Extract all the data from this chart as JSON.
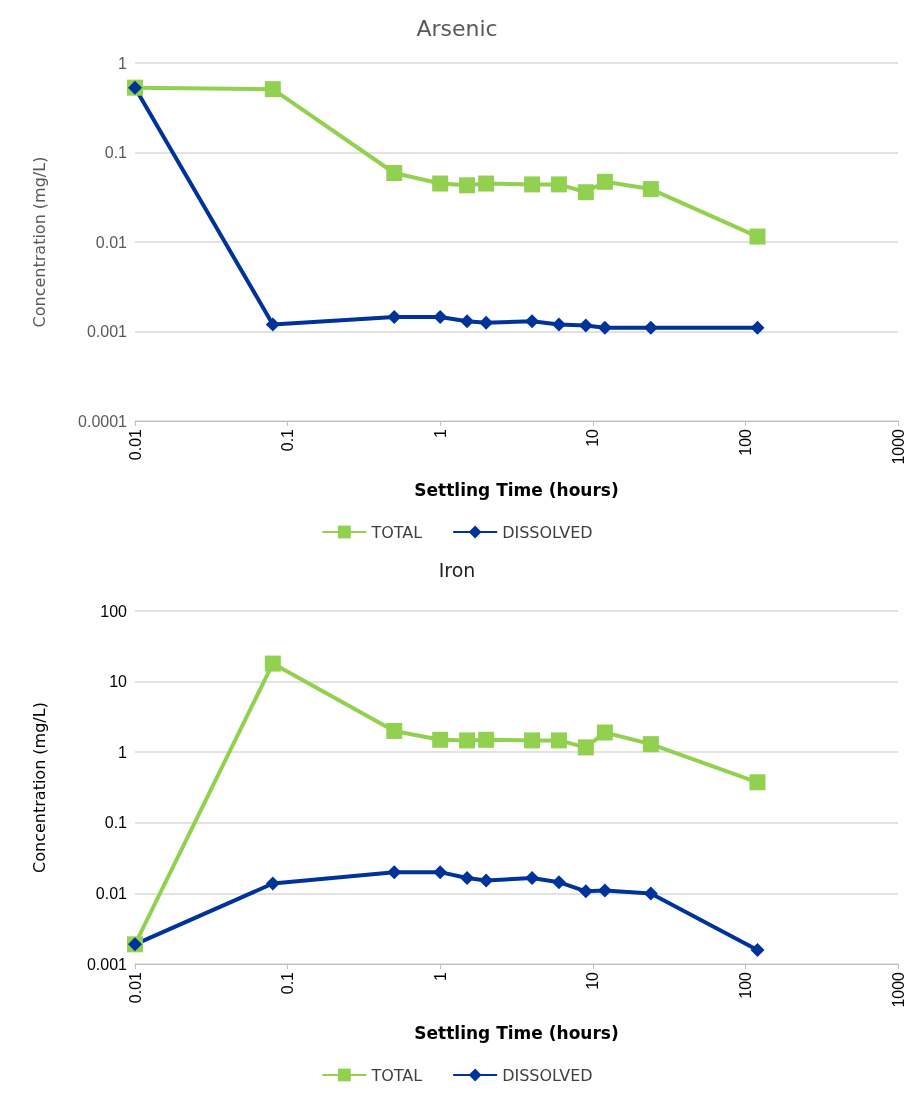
{
  "chart_data": [
    {
      "type": "line",
      "title": "Arsenic",
      "xlabel": "Settling Time (hours)",
      "ylabel": "Concentration (mg/L)",
      "log": "xy",
      "xlim": [
        0.01,
        1000
      ],
      "xticks": [
        0.01,
        0.1,
        1,
        10,
        100,
        1000
      ],
      "ylim": [
        0.0001,
        1
      ],
      "yticks": [
        0.0001,
        0.001,
        0.01,
        0.1,
        1
      ],
      "grid": "y",
      "legend": "bottom",
      "x": [
        0.01,
        0.08,
        0.5,
        1,
        1.5,
        2,
        4,
        6,
        9,
        12,
        24,
        120
      ],
      "series": [
        {
          "name": "TOTAL",
          "color": "#92d050",
          "marker": "square",
          "values": [
            0.53,
            0.51,
            0.059,
            0.045,
            0.043,
            0.045,
            0.044,
            0.044,
            0.036,
            0.047,
            0.039,
            0.0115
          ]
        },
        {
          "name": "DISSOLVED",
          "color": "#003399",
          "marker": "diamond",
          "values": [
            0.53,
            0.0012,
            0.00145,
            0.00145,
            0.0013,
            0.00125,
            0.0013,
            0.0012,
            0.00117,
            0.0011,
            0.0011,
            0.0011
          ]
        }
      ]
    },
    {
      "type": "line",
      "title": "Iron",
      "xlabel": "Settling Time (hours)",
      "ylabel": "Concentration (mg/L)",
      "log": "xy",
      "xlim": [
        0.01,
        1000
      ],
      "xticks": [
        0.01,
        0.1,
        1,
        10,
        100,
        1000
      ],
      "ylim": [
        0.001,
        100
      ],
      "yticks": [
        0.001,
        0.01,
        0.1,
        1,
        10,
        100
      ],
      "grid": "y",
      "legend": "bottom",
      "x": [
        0.01,
        0.08,
        0.5,
        1,
        1.5,
        2,
        4,
        6,
        9,
        12,
        24,
        120
      ],
      "series": [
        {
          "name": "TOTAL",
          "color": "#92d050",
          "marker": "square",
          "values": [
            0.0019,
            18,
            2.0,
            1.5,
            1.47,
            1.5,
            1.47,
            1.47,
            1.17,
            1.9,
            1.3,
            0.375
          ]
        },
        {
          "name": "DISSOLVED",
          "color": "#003399",
          "marker": "diamond",
          "values": [
            0.0019,
            0.0138,
            0.02,
            0.02,
            0.0165,
            0.0152,
            0.0165,
            0.0144,
            0.0107,
            0.011,
            0.01,
            0.00158
          ]
        }
      ]
    }
  ]
}
